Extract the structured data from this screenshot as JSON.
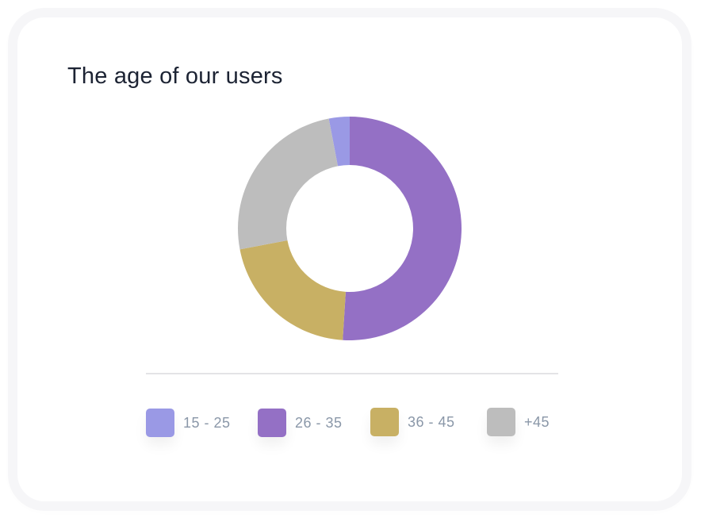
{
  "chart_data": {
    "type": "pie",
    "variant": "donut",
    "title": "The age of our users",
    "categories": [
      "15 - 25",
      "26 - 35",
      "36 - 45",
      "+45"
    ],
    "values": [
      3,
      51,
      21,
      25
    ],
    "colors": [
      "#9a99e5",
      "#9470c5",
      "#c8b064",
      "#bdbdbd"
    ],
    "legend_position": "bottom"
  }
}
